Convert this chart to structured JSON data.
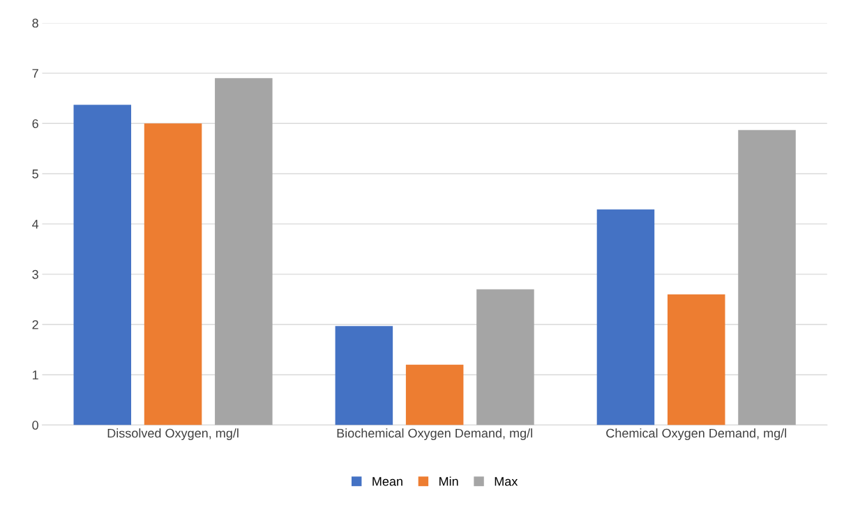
{
  "chart_data": {
    "type": "bar",
    "categories": [
      "Dissolved Oxygen, mg/l",
      "Biochemical Oxygen Demand, mg/l",
      "Chemical Oxygen Demand, mg/l"
    ],
    "series": [
      {
        "name": "Mean",
        "color": "#4472c4",
        "values": [
          6.37,
          1.97,
          4.29
        ]
      },
      {
        "name": "Min",
        "color": "#ed7d31",
        "values": [
          6.0,
          1.2,
          2.6
        ]
      },
      {
        "name": "Max",
        "color": "#a5a5a5",
        "values": [
          6.9,
          2.7,
          5.87
        ]
      }
    ],
    "ylim": [
      0,
      8
    ],
    "yticks": [
      0,
      1,
      2,
      3,
      4,
      5,
      6,
      7,
      8
    ],
    "grid": "y",
    "legend": "bottom"
  }
}
